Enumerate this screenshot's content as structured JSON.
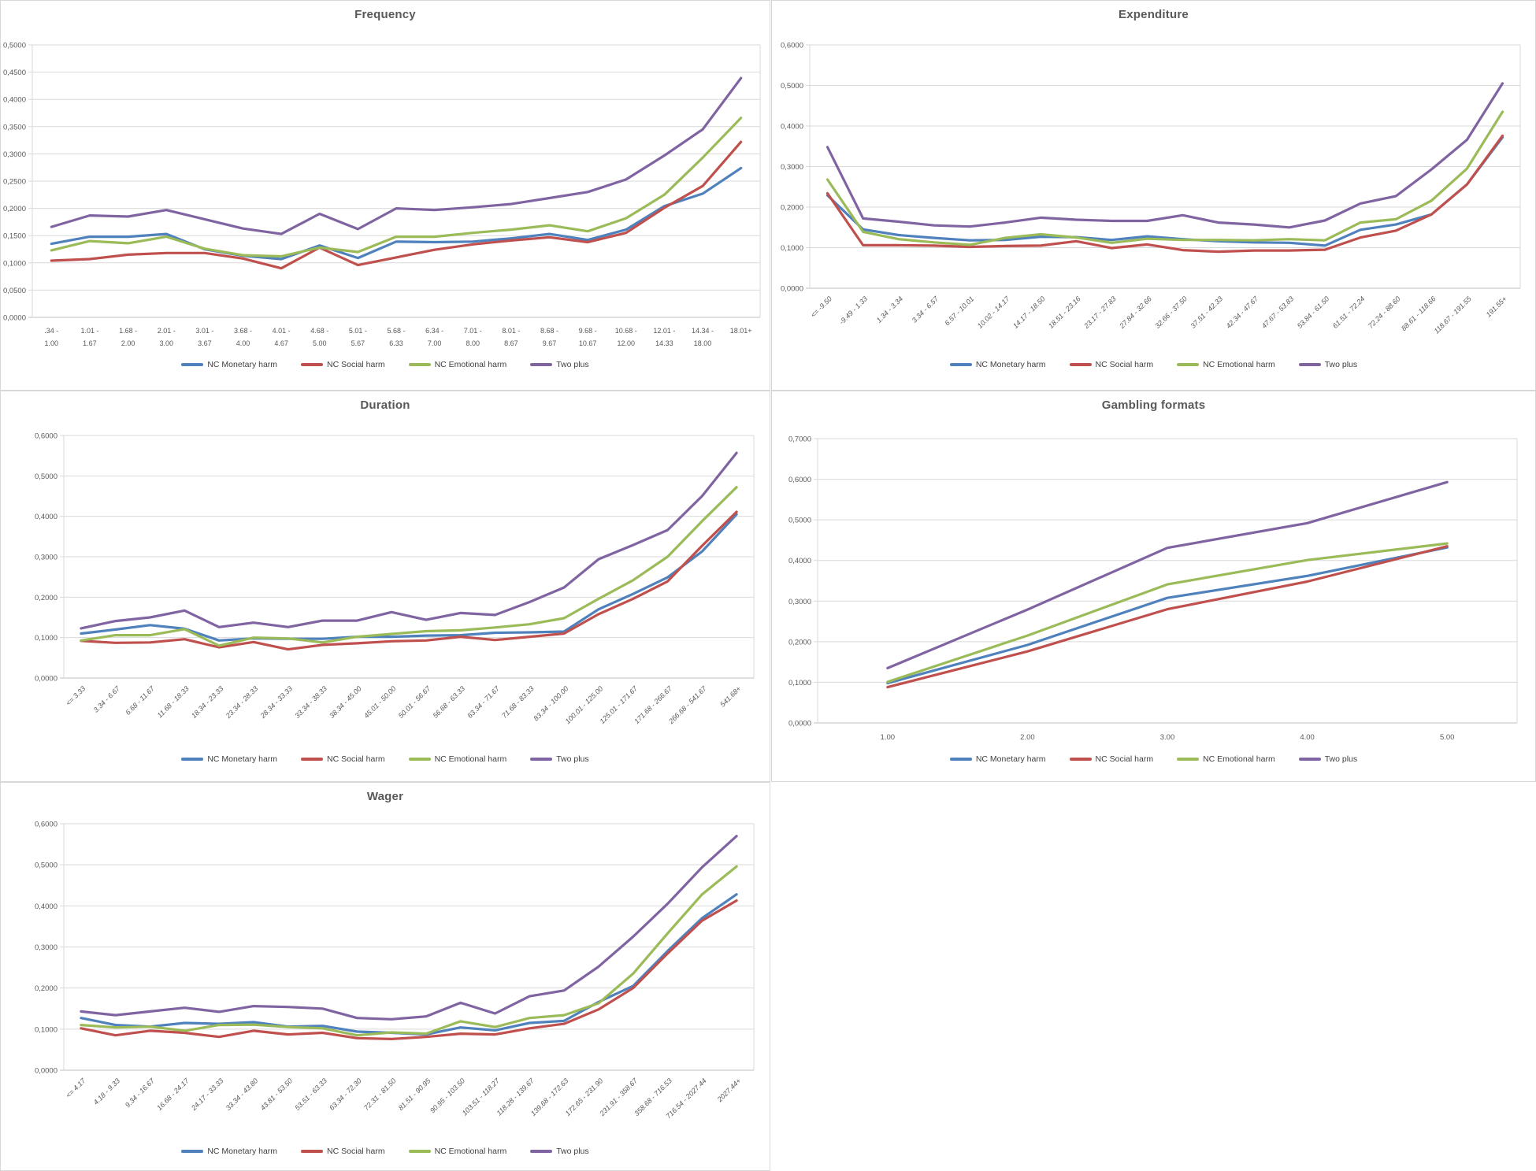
{
  "colors": {
    "background": "#ffffff",
    "grid": "#d9d9d9",
    "axis": "#bfbfbf",
    "title": "#595959",
    "tick_label": "#595959",
    "legend_text": "#404040",
    "series": {
      "monetary": "#4F81BD",
      "social": "#C0504D",
      "emotional": "#9BBB59",
      "twoplus": "#8064A2"
    }
  },
  "legend_labels": [
    "NC Monetary harm",
    "NC Social harm",
    "NC Emotional harm",
    "Two plus"
  ],
  "chart_data": [
    {
      "id": "frequency",
      "type": "line",
      "title": "Frequency",
      "grid": true,
      "legend_position": "bottom",
      "x_label_style": "twoline",
      "y_axis": {
        "min": 0,
        "max": 0.5,
        "step": 0.05,
        "tick_format": "comma-4-decimals",
        "tick_labels": [
          "0,0000",
          "0,0500",
          "0,1000",
          "0,1500",
          "0,2000",
          "0,2500",
          "0,3000",
          "0,3500",
          "0,4000",
          "0,4500",
          "0,5000"
        ]
      },
      "categories": [
        ".34 - 1.00",
        "1.01 - 1.67",
        "1.68 - 2.00",
        "2.01 - 3.00",
        "3.01 - 3.67",
        "3.68 - 4.00",
        "4.01 - 4.67",
        "4.68 - 5.00",
        "5.01 - 5.67",
        "5.68 - 6.33",
        "6.34 - 7.00",
        "7.01 - 8.00",
        "8.01 - 8.67",
        "8.68 - 9.67",
        "9.68 - 10.67",
        "10.68 - 12.00",
        "12.01 - 14.33",
        "14.34 - 18.00",
        "18.01+"
      ],
      "series": [
        {
          "key": "monetary",
          "name": "NC Monetary harm",
          "values": [
            0.135,
            0.148,
            0.148,
            0.153,
            0.125,
            0.113,
            0.107,
            0.132,
            0.109,
            0.139,
            0.138,
            0.139,
            0.145,
            0.153,
            0.142,
            0.161,
            0.204,
            0.227,
            0.274
          ]
        },
        {
          "key": "social",
          "name": "NC Social harm",
          "values": [
            0.104,
            0.107,
            0.115,
            0.118,
            0.118,
            0.108,
            0.09,
            0.128,
            0.096,
            0.11,
            0.124,
            0.134,
            0.141,
            0.147,
            0.138,
            0.155,
            0.201,
            0.241,
            0.322
          ]
        },
        {
          "key": "emotional",
          "name": "NC Emotional harm",
          "values": [
            0.123,
            0.14,
            0.136,
            0.148,
            0.126,
            0.114,
            0.112,
            0.128,
            0.12,
            0.148,
            0.148,
            0.155,
            0.161,
            0.169,
            0.158,
            0.182,
            0.225,
            0.293,
            0.366
          ]
        },
        {
          "key": "twoplus",
          "name": "Two plus",
          "values": [
            0.166,
            0.187,
            0.185,
            0.197,
            0.18,
            0.163,
            0.153,
            0.19,
            0.162,
            0.2,
            0.197,
            0.202,
            0.208,
            0.219,
            0.23,
            0.253,
            0.297,
            0.345,
            0.439
          ]
        }
      ]
    },
    {
      "id": "expenditure",
      "type": "line",
      "title": "Expenditure",
      "grid": true,
      "legend_position": "bottom",
      "x_label_style": "angled",
      "y_axis": {
        "min": 0,
        "max": 0.6,
        "step": 0.1,
        "tick_format": "comma-4-decimals",
        "tick_labels": [
          "0,0000",
          "0,1000",
          "0,2000",
          "0,3000",
          "0,4000",
          "0,5000",
          "0,6000"
        ]
      },
      "categories": [
        "<= -9.50",
        "-9.49 - 1.33",
        "1.34 - 3.34",
        "3.34 - 6.57",
        "6.57 - 10.01",
        "10.02 - 14.17",
        "14.17 - 18.50",
        "18.51 - 23.16",
        "23.17 - 27.83",
        "27.84 - 32.66",
        "32.66 - 37.50",
        "37.51 - 42.33",
        "42.34 - 47.67",
        "47.67 - 53.83",
        "53.84 - 61.50",
        "61.51 - 72.24",
        "72.24 - 88.60",
        "88.61 - 118.66",
        "118.67 - 191.55",
        "191.55+"
      ],
      "series": [
        {
          "key": "monetary",
          "name": "NC Monetary harm",
          "values": [
            0.229,
            0.145,
            0.131,
            0.124,
            0.118,
            0.119,
            0.127,
            0.126,
            0.119,
            0.128,
            0.121,
            0.116,
            0.113,
            0.112,
            0.105,
            0.144,
            0.157,
            0.182,
            0.256,
            0.372
          ]
        },
        {
          "key": "social",
          "name": "NC Social harm",
          "values": [
            0.234,
            0.106,
            0.106,
            0.105,
            0.102,
            0.104,
            0.105,
            0.116,
            0.099,
            0.108,
            0.094,
            0.09,
            0.093,
            0.093,
            0.095,
            0.125,
            0.142,
            0.182,
            0.256,
            0.376
          ]
        },
        {
          "key": "emotional",
          "name": "NC Emotional harm",
          "values": [
            0.268,
            0.139,
            0.121,
            0.113,
            0.107,
            0.124,
            0.133,
            0.125,
            0.112,
            0.122,
            0.119,
            0.119,
            0.118,
            0.121,
            0.118,
            0.162,
            0.17,
            0.216,
            0.295,
            0.435
          ]
        },
        {
          "key": "twoplus",
          "name": "Two plus",
          "values": [
            0.348,
            0.172,
            0.164,
            0.155,
            0.152,
            0.162,
            0.174,
            0.169,
            0.166,
            0.166,
            0.18,
            0.162,
            0.157,
            0.15,
            0.167,
            0.209,
            0.227,
            0.293,
            0.366,
            0.505
          ]
        }
      ]
    },
    {
      "id": "duration",
      "type": "line",
      "title": "Duration",
      "grid": true,
      "legend_position": "bottom",
      "x_label_style": "angled",
      "y_axis": {
        "min": 0,
        "max": 0.6,
        "step": 0.1,
        "tick_format": "comma-4-decimals",
        "tick_labels": [
          "0,0000",
          "0,1000",
          "0,2000",
          "0,3000",
          "0,4000",
          "0,5000",
          "0,6000"
        ]
      },
      "categories": [
        "<= 3.33",
        "3.34 - 6.67",
        "6.68 - 11.67",
        "11.68 - 18.33",
        "18.34 - 23.33",
        "23.34 - 28.33",
        "28.34 - 33.33",
        "33.34 - 38.33",
        "38.34 - 45.00",
        "45.01 - 50.00",
        "50.01 - 56.67",
        "56.68 - 63.33",
        "63.34 - 71.67",
        "71.68 - 83.33",
        "83.34 - 100.00",
        "100.01 - 125.00",
        "125.01 - 171.67",
        "171.68 - 266.67",
        "266.68 - 541.67",
        "541.68+"
      ],
      "series": [
        {
          "key": "monetary",
          "name": "NC Monetary harm",
          "values": [
            0.11,
            0.12,
            0.131,
            0.122,
            0.093,
            0.098,
            0.097,
            0.097,
            0.102,
            0.102,
            0.105,
            0.106,
            0.112,
            0.113,
            0.115,
            0.17,
            0.208,
            0.249,
            0.313,
            0.405
          ]
        },
        {
          "key": "social",
          "name": "NC Social harm",
          "values": [
            0.092,
            0.087,
            0.088,
            0.096,
            0.076,
            0.089,
            0.071,
            0.082,
            0.086,
            0.091,
            0.093,
            0.102,
            0.094,
            0.102,
            0.11,
            0.158,
            0.196,
            0.239,
            0.327,
            0.411
          ]
        },
        {
          "key": "emotional",
          "name": "NC Emotional harm",
          "values": [
            0.093,
            0.106,
            0.106,
            0.121,
            0.08,
            0.1,
            0.098,
            0.088,
            0.102,
            0.109,
            0.116,
            0.118,
            0.125,
            0.133,
            0.148,
            0.196,
            0.242,
            0.3,
            0.388,
            0.472
          ]
        },
        {
          "key": "twoplus",
          "name": "Two plus",
          "values": [
            0.123,
            0.141,
            0.15,
            0.167,
            0.126,
            0.137,
            0.126,
            0.142,
            0.142,
            0.163,
            0.144,
            0.161,
            0.156,
            0.188,
            0.224,
            0.294,
            0.329,
            0.366,
            0.45,
            0.557
          ]
        }
      ]
    },
    {
      "id": "gambling-formats",
      "type": "line",
      "title": "Gambling formats",
      "grid": true,
      "legend_position": "bottom",
      "x_label_style": "plain",
      "y_axis": {
        "min": 0,
        "max": 0.7,
        "step": 0.1,
        "tick_format": "comma-4-decimals",
        "tick_labels": [
          "0,0000",
          "0,1000",
          "0,2000",
          "0,3000",
          "0,4000",
          "0,5000",
          "0,6000",
          "0,7000"
        ]
      },
      "categories": [
        "1.00",
        "2.00",
        "3.00",
        "4.00",
        "5.00"
      ],
      "series": [
        {
          "key": "monetary",
          "name": "NC Monetary harm",
          "values": [
            0.098,
            0.192,
            0.308,
            0.362,
            0.432
          ]
        },
        {
          "key": "social",
          "name": "NC Social harm",
          "values": [
            0.088,
            0.176,
            0.28,
            0.348,
            0.435
          ]
        },
        {
          "key": "emotional",
          "name": "NC Emotional harm",
          "values": [
            0.101,
            0.215,
            0.341,
            0.401,
            0.442
          ]
        },
        {
          "key": "twoplus",
          "name": "Two plus",
          "values": [
            0.135,
            0.279,
            0.431,
            0.492,
            0.593
          ]
        }
      ]
    },
    {
      "id": "wager",
      "type": "line",
      "title": "Wager",
      "grid": true,
      "legend_position": "bottom",
      "x_label_style": "angled",
      "y_axis": {
        "min": 0,
        "max": 0.6,
        "step": 0.1,
        "tick_format": "comma-4-decimals",
        "tick_labels": [
          "0,0000",
          "0,1000",
          "0,2000",
          "0,3000",
          "0,4000",
          "0,5000",
          "0,6000"
        ]
      },
      "categories": [
        "<= 4.17",
        "4.18 - 9.33",
        "9.34 - 16.67",
        "16.68 - 24.17",
        "24.17 - 33.33",
        "33.34 - 43.80",
        "43.81 - 53.50",
        "53.51 - 63.33",
        "63.34 - 72.30",
        "72.31 - 81.50",
        "81.51 - 90.95",
        "90.95 - 103.50",
        "103.51 - 118.27",
        "118.28 - 139.67",
        "139.68 - 172.63",
        "172.65 - 231.90",
        "231.91 - 358.67",
        "358.68 - 716.53",
        "716.54 - 2027.44",
        "2027.44+"
      ],
      "series": [
        {
          "key": "monetary",
          "name": "NC Monetary harm",
          "values": [
            0.127,
            0.11,
            0.106,
            0.115,
            0.113,
            0.117,
            0.106,
            0.108,
            0.094,
            0.091,
            0.087,
            0.104,
            0.097,
            0.115,
            0.12,
            0.166,
            0.205,
            0.29,
            0.37,
            0.428
          ]
        },
        {
          "key": "social",
          "name": "NC Social harm",
          "values": [
            0.102,
            0.085,
            0.096,
            0.091,
            0.081,
            0.096,
            0.087,
            0.091,
            0.078,
            0.076,
            0.081,
            0.089,
            0.087,
            0.102,
            0.113,
            0.148,
            0.2,
            0.284,
            0.364,
            0.413
          ]
        },
        {
          "key": "emotional",
          "name": "NC Emotional harm",
          "values": [
            0.11,
            0.104,
            0.106,
            0.096,
            0.11,
            0.111,
            0.105,
            0.102,
            0.085,
            0.092,
            0.089,
            0.119,
            0.105,
            0.127,
            0.134,
            0.163,
            0.235,
            0.333,
            0.428,
            0.496
          ]
        },
        {
          "key": "twoplus",
          "name": "Two plus",
          "values": [
            0.143,
            0.134,
            0.143,
            0.152,
            0.142,
            0.156,
            0.154,
            0.15,
            0.127,
            0.124,
            0.131,
            0.164,
            0.138,
            0.18,
            0.194,
            0.252,
            0.325,
            0.405,
            0.494,
            0.57
          ]
        }
      ]
    }
  ]
}
